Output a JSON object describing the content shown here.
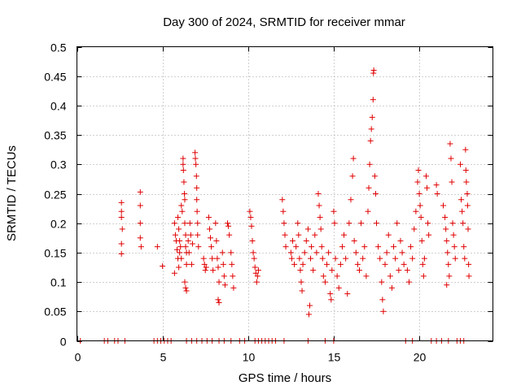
{
  "chart_data": {
    "type": "scatter",
    "title": "Day 300 of 2024, SRMTID for receiver mmar",
    "xlabel": "GPS time / hours",
    "ylabel": "SRMTID / TECUs",
    "xlim": [
      0,
      24.3
    ],
    "ylim": [
      0,
      0.5
    ],
    "xticks": [
      0,
      5,
      10,
      15,
      20
    ],
    "xtick_labels": [
      "0",
      "5",
      "10",
      "15",
      "20"
    ],
    "yticks": [
      0,
      0.05,
      0.1,
      0.15,
      0.2,
      0.25,
      0.3,
      0.35,
      0.4,
      0.45,
      0.5
    ],
    "ytick_labels": [
      "0",
      "0.05",
      "0.1",
      "0.15",
      "0.2",
      "0.25",
      "0.3",
      "0.35",
      "0.4",
      "0.45",
      "0.5"
    ],
    "grid": true,
    "marker": "+",
    "marker_color": "#e00000",
    "series": [
      {
        "name": "SRMTID",
        "points": [
          [
            0.2,
            0
          ],
          [
            1.6,
            0
          ],
          [
            1.8,
            0
          ],
          [
            2.2,
            0
          ],
          [
            2.4,
            0
          ],
          [
            2.8,
            0
          ],
          [
            4.5,
            0
          ],
          [
            4.7,
            0
          ],
          [
            4.9,
            0
          ],
          [
            5.1,
            0
          ],
          [
            5.3,
            0
          ],
          [
            5.5,
            0
          ],
          [
            6.4,
            0
          ],
          [
            6.7,
            0
          ],
          [
            7.0,
            0
          ],
          [
            7.3,
            0
          ],
          [
            7.6,
            0
          ],
          [
            7.9,
            0
          ],
          [
            8.3,
            0
          ],
          [
            8.6,
            0
          ],
          [
            9.0,
            0
          ],
          [
            9.5,
            0
          ],
          [
            9.8,
            0
          ],
          [
            10.4,
            0
          ],
          [
            10.6,
            0
          ],
          [
            10.8,
            0
          ],
          [
            11.0,
            0
          ],
          [
            11.2,
            0
          ],
          [
            11.4,
            0
          ],
          [
            11.6,
            0
          ],
          [
            12.1,
            0
          ],
          [
            13.5,
            0
          ],
          [
            14.5,
            0
          ],
          [
            15.0,
            0
          ],
          [
            19.2,
            0
          ],
          [
            19.6,
            0
          ],
          [
            20.7,
            0
          ],
          [
            21.0,
            0
          ],
          [
            21.3,
            0
          ],
          [
            21.7,
            0
          ],
          [
            22.2,
            0
          ],
          [
            22.4,
            0
          ],
          [
            22.6,
            0
          ],
          [
            2.6,
            0.235
          ],
          [
            2.6,
            0.22
          ],
          [
            2.6,
            0.21
          ],
          [
            2.65,
            0.19
          ],
          [
            2.6,
            0.165
          ],
          [
            2.6,
            0.148
          ],
          [
            3.7,
            0.253
          ],
          [
            3.7,
            0.23
          ],
          [
            3.7,
            0.2
          ],
          [
            3.7,
            0.175
          ],
          [
            3.75,
            0.16
          ],
          [
            4.7,
            0.16
          ],
          [
            5.0,
            0.127
          ],
          [
            5.7,
            0.2
          ],
          [
            5.75,
            0.18
          ],
          [
            5.8,
            0.17
          ],
          [
            5.85,
            0.155
          ],
          [
            5.9,
            0.14
          ],
          [
            5.95,
            0.125
          ],
          [
            5.7,
            0.115
          ],
          [
            5.9,
            0.21
          ],
          [
            5.95,
            0.19
          ],
          [
            6.0,
            0.17
          ],
          [
            6.05,
            0.16
          ],
          [
            6.0,
            0.15
          ],
          [
            6.1,
            0.14
          ],
          [
            6.1,
            0.23
          ],
          [
            6.15,
            0.22
          ],
          [
            6.2,
            0.31
          ],
          [
            6.2,
            0.3
          ],
          [
            6.22,
            0.29
          ],
          [
            6.25,
            0.27
          ],
          [
            6.28,
            0.25
          ],
          [
            6.3,
            0.24
          ],
          [
            6.3,
            0.2
          ],
          [
            6.35,
            0.18
          ],
          [
            6.35,
            0.16
          ],
          [
            6.4,
            0.15
          ],
          [
            6.4,
            0.13
          ],
          [
            6.3,
            0.1
          ],
          [
            6.35,
            0.09
          ],
          [
            6.4,
            0.085
          ],
          [
            6.5,
            0.17
          ],
          [
            6.55,
            0.15
          ],
          [
            6.6,
            0.2
          ],
          [
            6.65,
            0.18
          ],
          [
            6.7,
            0.13
          ],
          [
            6.75,
            0.165
          ],
          [
            6.9,
            0.32
          ],
          [
            6.92,
            0.31
          ],
          [
            6.95,
            0.3
          ],
          [
            6.98,
            0.28
          ],
          [
            7.0,
            0.26
          ],
          [
            7.0,
            0.24
          ],
          [
            7.02,
            0.22
          ],
          [
            7.05,
            0.2
          ],
          [
            7.05,
            0.18
          ],
          [
            7.1,
            0.16
          ],
          [
            7.4,
            0.14
          ],
          [
            7.45,
            0.13
          ],
          [
            7.5,
            0.12
          ],
          [
            7.55,
            0.125
          ],
          [
            7.7,
            0.21
          ],
          [
            7.75,
            0.19
          ],
          [
            7.8,
            0.175
          ],
          [
            7.85,
            0.16
          ],
          [
            7.9,
            0.14
          ],
          [
            7.95,
            0.12
          ],
          [
            8.1,
            0.2
          ],
          [
            8.15,
            0.17
          ],
          [
            8.2,
            0.14
          ],
          [
            8.25,
            0.125
          ],
          [
            8.3,
            0.1
          ],
          [
            8.25,
            0.07
          ],
          [
            8.3,
            0.065
          ],
          [
            8.5,
            0.15
          ],
          [
            8.55,
            0.13
          ],
          [
            8.6,
            0.11
          ],
          [
            8.65,
            0.095
          ],
          [
            8.8,
            0.2
          ],
          [
            8.85,
            0.195
          ],
          [
            8.9,
            0.18
          ],
          [
            9.0,
            0.15
          ],
          [
            9.05,
            0.13
          ],
          [
            9.1,
            0.11
          ],
          [
            9.15,
            0.09
          ],
          [
            10.1,
            0.22
          ],
          [
            10.15,
            0.21
          ],
          [
            10.2,
            0.195
          ],
          [
            10.25,
            0.17
          ],
          [
            10.3,
            0.15
          ],
          [
            10.35,
            0.14
          ],
          [
            10.4,
            0.125
          ],
          [
            10.45,
            0.115
          ],
          [
            10.5,
            0.1
          ],
          [
            10.55,
            0.11
          ],
          [
            10.6,
            0.12
          ],
          [
            12.0,
            0.24
          ],
          [
            12.05,
            0.22
          ],
          [
            12.1,
            0.2
          ],
          [
            12.15,
            0.18
          ],
          [
            12.2,
            0.16
          ],
          [
            12.5,
            0.15
          ],
          [
            12.55,
            0.14
          ],
          [
            12.6,
            0.17
          ],
          [
            12.7,
            0.13
          ],
          [
            12.8,
            0.16
          ],
          [
            12.9,
            0.2
          ],
          [
            12.95,
            0.18
          ],
          [
            13.0,
            0.14
          ],
          [
            13.05,
            0.12
          ],
          [
            13.1,
            0.1
          ],
          [
            13.15,
            0.085
          ],
          [
            13.2,
            0.13
          ],
          [
            13.3,
            0.15
          ],
          [
            13.4,
            0.17
          ],
          [
            13.5,
            0.19
          ],
          [
            13.55,
            0.045
          ],
          [
            13.6,
            0.06
          ],
          [
            13.65,
            0.14
          ],
          [
            13.7,
            0.16
          ],
          [
            13.8,
            0.12
          ],
          [
            13.9,
            0.18
          ],
          [
            14.0,
            0.15
          ],
          [
            14.1,
            0.25
          ],
          [
            14.15,
            0.23
          ],
          [
            14.2,
            0.21
          ],
          [
            14.25,
            0.19
          ],
          [
            14.3,
            0.16
          ],
          [
            14.35,
            0.14
          ],
          [
            14.4,
            0.11
          ],
          [
            14.5,
            0.1
          ],
          [
            14.6,
            0.13
          ],
          [
            14.7,
            0.15
          ],
          [
            14.8,
            0.08
          ],
          [
            14.85,
            0.07
          ],
          [
            14.9,
            0.12
          ],
          [
            15.0,
            0.22
          ],
          [
            15.05,
            0.2
          ],
          [
            15.1,
            0.14
          ],
          [
            15.2,
            0.11
          ],
          [
            15.3,
            0.09
          ],
          [
            15.4,
            0.13
          ],
          [
            15.5,
            0.16
          ],
          [
            15.6,
            0.18
          ],
          [
            15.7,
            0.14
          ],
          [
            15.8,
            0.08
          ],
          [
            15.9,
            0.2
          ],
          [
            16.0,
            0.24
          ],
          [
            16.1,
            0.28
          ],
          [
            16.15,
            0.31
          ],
          [
            16.2,
            0.17
          ],
          [
            16.3,
            0.15
          ],
          [
            16.4,
            0.13
          ],
          [
            16.5,
            0.12
          ],
          [
            16.6,
            0.2
          ],
          [
            16.7,
            0.14
          ],
          [
            16.8,
            0.16
          ],
          [
            16.9,
            0.11
          ],
          [
            17.0,
            0.22
          ],
          [
            17.05,
            0.26
          ],
          [
            17.1,
            0.3
          ],
          [
            17.15,
            0.34
          ],
          [
            17.2,
            0.36
          ],
          [
            17.25,
            0.38
          ],
          [
            17.3,
            0.41
          ],
          [
            17.32,
            0.455
          ],
          [
            17.34,
            0.46
          ],
          [
            17.4,
            0.28
          ],
          [
            17.45,
            0.25
          ],
          [
            17.5,
            0.2
          ],
          [
            17.6,
            0.16
          ],
          [
            17.7,
            0.14
          ],
          [
            17.8,
            0.1
          ],
          [
            17.85,
            0.07
          ],
          [
            17.9,
            0.05
          ],
          [
            18.0,
            0.13
          ],
          [
            18.1,
            0.15
          ],
          [
            18.2,
            0.18
          ],
          [
            18.3,
            0.11
          ],
          [
            18.4,
            0.09
          ],
          [
            18.5,
            0.16
          ],
          [
            18.6,
            0.14
          ],
          [
            18.7,
            0.2
          ],
          [
            18.8,
            0.12
          ],
          [
            18.9,
            0.17
          ],
          [
            19.0,
            0.15
          ],
          [
            19.1,
            0.13
          ],
          [
            19.3,
            0.12
          ],
          [
            19.4,
            0.1
          ],
          [
            19.5,
            0.16
          ],
          [
            19.6,
            0.14
          ],
          [
            19.7,
            0.19
          ],
          [
            19.8,
            0.22
          ],
          [
            19.9,
            0.27
          ],
          [
            19.95,
            0.29
          ],
          [
            20.0,
            0.25
          ],
          [
            20.05,
            0.23
          ],
          [
            20.1,
            0.21
          ],
          [
            20.15,
            0.17
          ],
          [
            20.2,
            0.13
          ],
          [
            20.25,
            0.11
          ],
          [
            20.3,
            0.14
          ],
          [
            20.4,
            0.28
          ],
          [
            20.45,
            0.26
          ],
          [
            20.5,
            0.2
          ],
          [
            20.55,
            0.18
          ],
          [
            21.0,
            0.265
          ],
          [
            21.05,
            0.25
          ],
          [
            21.4,
            0.23
          ],
          [
            21.5,
            0.21
          ],
          [
            21.55,
            0.19
          ],
          [
            21.6,
            0.17
          ],
          [
            21.65,
            0.15
          ],
          [
            21.7,
            0.13
          ],
          [
            21.75,
            0.11
          ],
          [
            21.6,
            0.095
          ],
          [
            21.8,
            0.335
          ],
          [
            21.85,
            0.31
          ],
          [
            21.9,
            0.27
          ],
          [
            21.95,
            0.2
          ],
          [
            22.0,
            0.18
          ],
          [
            22.05,
            0.16
          ],
          [
            22.1,
            0.14
          ],
          [
            22.4,
            0.3
          ],
          [
            22.45,
            0.24
          ],
          [
            22.5,
            0.22
          ],
          [
            22.55,
            0.2
          ],
          [
            22.6,
            0.16
          ],
          [
            22.65,
            0.14
          ],
          [
            22.7,
            0.325
          ],
          [
            22.72,
            0.29
          ],
          [
            22.75,
            0.27
          ],
          [
            22.8,
            0.25
          ],
          [
            22.82,
            0.23
          ],
          [
            22.85,
            0.19
          ],
          [
            22.88,
            0.13
          ],
          [
            22.9,
            0.11
          ]
        ]
      }
    ]
  }
}
